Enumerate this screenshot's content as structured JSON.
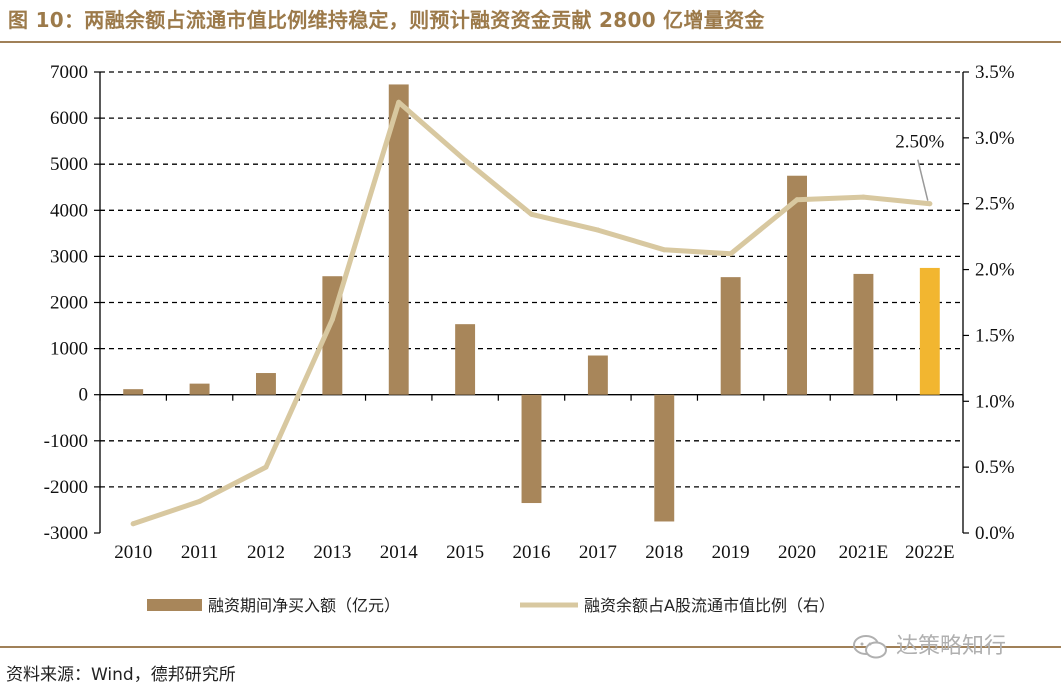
{
  "title": "图 10：两融余额占流通市值比例维持稳定，则预计融资资金贡献 2800 亿增量资金",
  "source": "资料来源：Wind，德邦研究所",
  "watermark": "达策略知行",
  "chart_data": {
    "type": "bar+line",
    "categories": [
      "2010",
      "2011",
      "2012",
      "2013",
      "2014",
      "2015",
      "2016",
      "2017",
      "2018",
      "2019",
      "2020",
      "2021E",
      "2022E"
    ],
    "series": [
      {
        "name": "融资期间净买入额（亿元）",
        "type": "bar",
        "axis": "left",
        "values": [
          120,
          240,
          470,
          2570,
          6730,
          1530,
          -2350,
          850,
          -2750,
          2550,
          4750,
          2620,
          2750
        ],
        "color": "#a8865a",
        "highlight_color": "#f2b630",
        "highlight_index": 12
      },
      {
        "name": "融资余额占A股流通市值比例（右）",
        "type": "line",
        "axis": "right",
        "values": [
          0.07,
          0.24,
          0.5,
          1.62,
          3.27,
          2.83,
          2.42,
          2.3,
          2.15,
          2.12,
          2.53,
          2.55,
          2.5
        ],
        "color": "#d8c8a0"
      }
    ],
    "left_axis": {
      "min": -3000,
      "max": 7000,
      "step": 1000,
      "ticks": [
        "7000",
        "6000",
        "5000",
        "4000",
        "3000",
        "2000",
        "1000",
        "0",
        "-1000",
        "-2000",
        "-3000"
      ]
    },
    "right_axis": {
      "min": 0.0,
      "max": 3.5,
      "step": 0.5,
      "ticks": [
        "3.5%",
        "3.0%",
        "2.5%",
        "2.0%",
        "1.5%",
        "1.0%",
        "0.5%",
        "0.0%"
      ]
    },
    "annotation": {
      "text": "2.50%",
      "index": 12
    },
    "grid": true,
    "legend_position": "bottom"
  }
}
